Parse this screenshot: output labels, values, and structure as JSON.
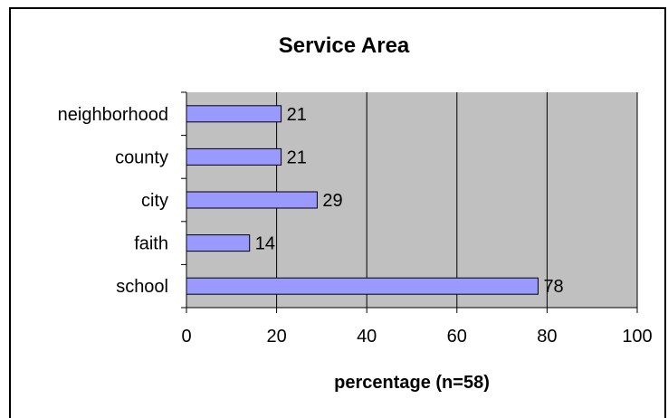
{
  "chart_data": {
    "type": "bar",
    "orientation": "horizontal",
    "title": "Service Area",
    "xlabel": "percentage (n=58)",
    "ylabel": "",
    "categories": [
      "neighborhood",
      "county",
      "city",
      "faith",
      "school"
    ],
    "values": [
      21,
      21,
      29,
      14,
      78
    ],
    "data_labels": [
      "21",
      "21",
      "29",
      "14",
      "78"
    ],
    "xlim": [
      0,
      100
    ],
    "xticks": [
      "0",
      "20",
      "40",
      "60",
      "80",
      "100"
    ],
    "grid": "vertical",
    "legend": "none",
    "colors": {
      "bar_fill": "#9999ff",
      "bar_stroke": "#000000",
      "plot_background": "#c0c0c0",
      "grid": "#000000"
    }
  }
}
